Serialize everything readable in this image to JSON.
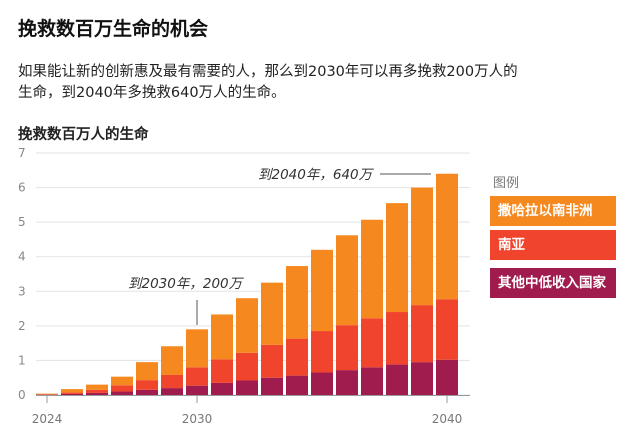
{
  "title": "挽救数百万生命的机会",
  "description": "如果能让新的创新惠及最有需要的人，那么到2030年可以再多挽救200万人的生命，到2040年多挽救640万人的生命。",
  "chart_data": {
    "type": "bar",
    "stacked": true,
    "title": "挽救数百万人的生命",
    "xlabel": "",
    "ylabel": "",
    "ylim": [
      0,
      7
    ],
    "yticks": [
      "0",
      "1",
      "2",
      "3",
      "4",
      "5",
      "6",
      "7"
    ],
    "grid": true,
    "legend_placement": "right",
    "legend_title": "图例",
    "categories": [
      "2024",
      "2025",
      "2026",
      "2027",
      "2028",
      "2029",
      "2030",
      "2031",
      "2032",
      "2033",
      "2034",
      "2035",
      "2036",
      "2037",
      "2038",
      "2039",
      "2040"
    ],
    "x_tick_labels": [
      {
        "category": "2024",
        "label": "2024"
      },
      {
        "category": "2030",
        "label": "2030"
      },
      {
        "category": "2040",
        "label": "2040"
      }
    ],
    "series": [
      {
        "name": "其他中低收入国家",
        "color": "#a01c4e",
        "values": [
          0.01,
          0.03,
          0.06,
          0.1,
          0.15,
          0.2,
          0.27,
          0.35,
          0.42,
          0.5,
          0.56,
          0.65,
          0.72,
          0.8,
          0.88,
          0.95,
          1.02
        ]
      },
      {
        "name": "南亚",
        "color": "#f0442d",
        "values": [
          0.01,
          0.04,
          0.09,
          0.18,
          0.28,
          0.38,
          0.53,
          0.68,
          0.8,
          0.95,
          1.07,
          1.2,
          1.3,
          1.42,
          1.52,
          1.65,
          1.75
        ]
      },
      {
        "name": "撒哈拉以南非洲",
        "color": "#f5881f",
        "values": [
          0.02,
          0.1,
          0.15,
          0.25,
          0.52,
          0.83,
          1.1,
          1.3,
          1.58,
          1.8,
          2.1,
          2.35,
          2.6,
          2.85,
          3.15,
          3.4,
          3.63
        ]
      }
    ],
    "annotations": [
      {
        "category": "2030",
        "text": "到2030年，200万"
      },
      {
        "category": "2040",
        "text": "到2040年，640万"
      }
    ]
  }
}
